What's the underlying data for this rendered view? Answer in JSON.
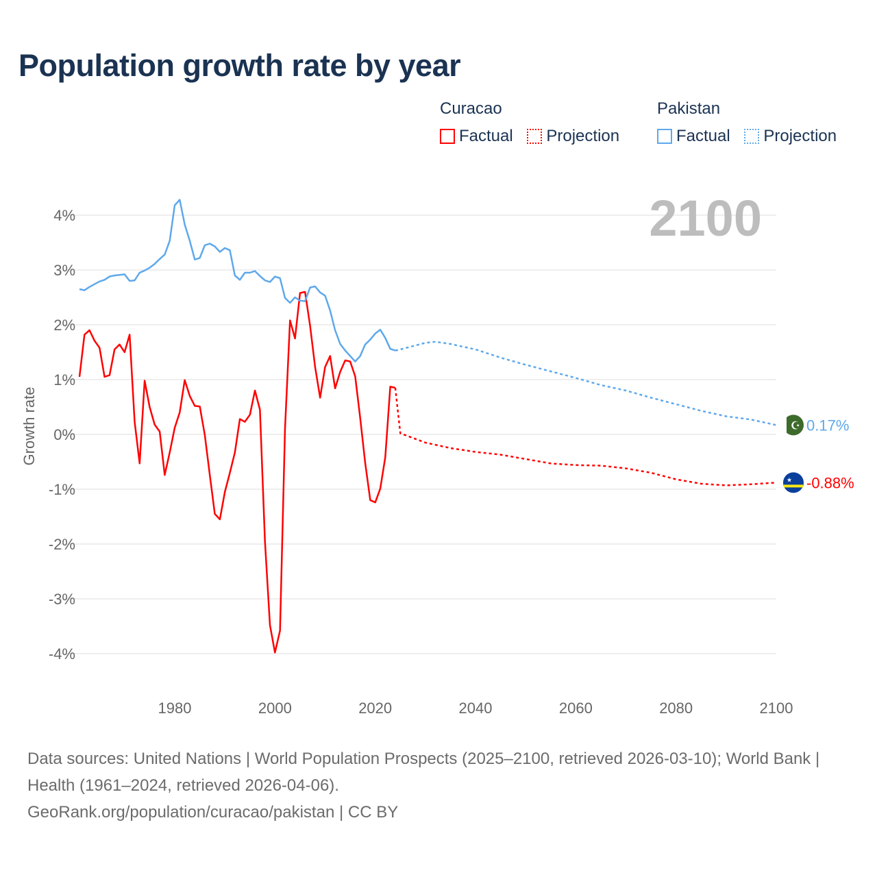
{
  "title": "Population growth rate by year",
  "legend": {
    "groups": [
      {
        "name": "Curacao",
        "color": "#ff0000",
        "items": [
          "Factual",
          "Projection"
        ]
      },
      {
        "name": "Pakistan",
        "color": "#5ea8ec",
        "items": [
          "Factual",
          "Projection"
        ]
      }
    ]
  },
  "year_display": "2100",
  "footer": {
    "line1": "Data sources: United Nations | World Population Prospects (2025–2100, retrieved 2026-03-10); World Bank | Health (1961–2024, retrieved 2026-04-06).",
    "line2": "GeoRank.org/population/curacao/pakistan | CC BY"
  },
  "chart_data": {
    "type": "line",
    "title": "Population growth rate by year",
    "xlabel": "",
    "ylabel": "Growth rate",
    "xlim": [
      1961,
      2100
    ],
    "ylim": [
      -4.5,
      4.5
    ],
    "xticks": [
      1980,
      2000,
      2020,
      2040,
      2060,
      2080,
      2100
    ],
    "xtick_labels": [
      "1980",
      "2000",
      "2020",
      "2040",
      "2060",
      "2080",
      "2100"
    ],
    "yticks": [
      4,
      3,
      2,
      1,
      0,
      -1,
      -2,
      -3,
      -4
    ],
    "ytick_labels": [
      "4%",
      "3%",
      "2%",
      "1%",
      "0%",
      "-1%",
      "-2%",
      "-3%",
      "-4%"
    ],
    "grid": true,
    "legend_position": "top-right",
    "series": [
      {
        "name": "Curacao",
        "color": "#ff0000",
        "end_label": "-0.88%",
        "factual": {
          "x_start": 1961,
          "values": [
            1.05,
            1.82,
            1.9,
            1.71,
            1.58,
            1.05,
            1.08,
            1.55,
            1.64,
            1.5,
            1.82,
            0.23,
            -0.53,
            0.98,
            0.5,
            0.18,
            0.05,
            -0.74,
            -0.33,
            0.12,
            0.4,
            0.99,
            0.7,
            0.52,
            0.51,
            -0.01,
            -0.74,
            -1.45,
            -1.55,
            -1.05,
            -0.7,
            -0.33,
            0.28,
            0.23,
            0.36,
            0.8,
            0.45,
            -1.95,
            -3.48,
            -3.98,
            -3.58,
            0.11,
            2.08,
            1.75,
            2.58,
            2.6,
            1.98,
            1.23,
            0.67,
            1.23,
            1.43,
            0.84,
            1.14,
            1.35,
            1.33,
            1.06,
            0.3,
            -0.52,
            -1.2,
            -1.24,
            -0.99,
            -0.42,
            0.87,
            0.85
          ]
        },
        "projection": {
          "x": [
            2024,
            2025,
            2030,
            2035,
            2040,
            2045,
            2050,
            2055,
            2060,
            2065,
            2070,
            2075,
            2080,
            2085,
            2090,
            2095,
            2100
          ],
          "values": [
            0.85,
            0.02,
            -0.15,
            -0.25,
            -0.32,
            -0.37,
            -0.45,
            -0.53,
            -0.56,
            -0.57,
            -0.62,
            -0.7,
            -0.82,
            -0.9,
            -0.93,
            -0.91,
            -0.88
          ]
        }
      },
      {
        "name": "Pakistan",
        "color": "#5ea8ec",
        "end_label": "0.17%",
        "factual": {
          "x_start": 1961,
          "values": [
            2.65,
            2.63,
            2.69,
            2.74,
            2.79,
            2.82,
            2.88,
            2.9,
            2.91,
            2.92,
            2.8,
            2.81,
            2.95,
            2.99,
            3.04,
            3.11,
            3.2,
            3.28,
            3.53,
            4.18,
            4.28,
            3.83,
            3.53,
            3.19,
            3.22,
            3.45,
            3.48,
            3.43,
            3.33,
            3.4,
            3.36,
            2.9,
            2.82,
            2.95,
            2.95,
            2.98,
            2.89,
            2.81,
            2.78,
            2.88,
            2.85,
            2.49,
            2.4,
            2.5,
            2.44,
            2.43,
            2.68,
            2.7,
            2.59,
            2.53,
            2.26,
            1.9,
            1.65,
            1.53,
            1.43,
            1.33,
            1.43,
            1.64,
            1.73,
            1.84,
            1.91,
            1.76,
            1.56,
            1.53
          ]
        },
        "projection": {
          "x": [
            2024,
            2025,
            2030,
            2032,
            2035,
            2040,
            2045,
            2050,
            2055,
            2060,
            2065,
            2070,
            2075,
            2080,
            2085,
            2090,
            2095,
            2100
          ],
          "values": [
            1.53,
            1.55,
            1.67,
            1.69,
            1.65,
            1.55,
            1.4,
            1.27,
            1.15,
            1.03,
            0.9,
            0.8,
            0.67,
            0.55,
            0.43,
            0.33,
            0.27,
            0.17
          ]
        }
      }
    ]
  }
}
